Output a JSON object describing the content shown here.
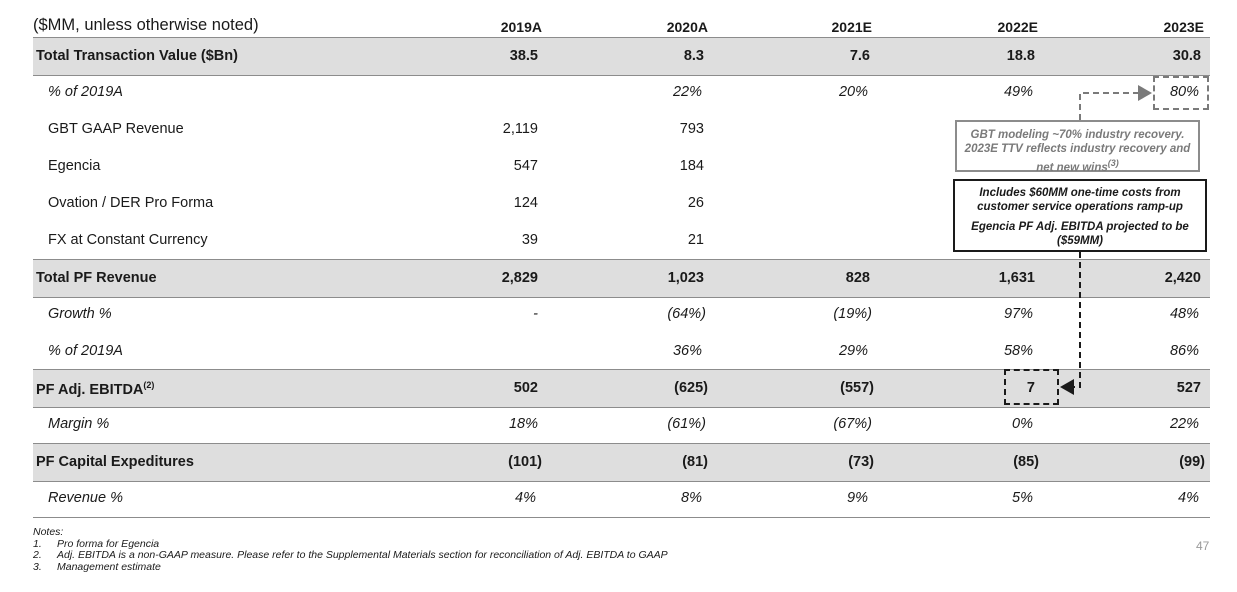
{
  "header": {
    "unit_note": "($MM, unless otherwise noted)",
    "years": [
      "2019A",
      "2020A",
      "2021E",
      "2022E",
      "2023E"
    ]
  },
  "rows": [
    {
      "label": "Total Transaction Value ($Bn)",
      "values": [
        "38.5",
        "8.3",
        "7.6",
        "18.8",
        "30.8"
      ]
    },
    {
      "label": "% of 2019A",
      "values": [
        "",
        "22%",
        "20%",
        "49%",
        "80%"
      ]
    },
    {
      "label": "GBT GAAP Revenue",
      "values": [
        "2,119",
        "793",
        "",
        "",
        ""
      ]
    },
    {
      "label": "Egencia",
      "values": [
        "547",
        "184",
        "",
        "",
        ""
      ]
    },
    {
      "label": "Ovation / DER Pro Forma",
      "values": [
        "124",
        "26",
        "",
        "",
        ""
      ]
    },
    {
      "label": "FX at Constant Currency",
      "values": [
        "39",
        "21",
        "",
        "",
        ""
      ]
    },
    {
      "label": "Total PF Revenue",
      "values": [
        "2,829",
        "1,023",
        "828",
        "1,631",
        "2,420"
      ]
    },
    {
      "label": "Growth %",
      "values": [
        "-",
        "(64%)",
        "(19%)",
        "97%",
        "48%"
      ]
    },
    {
      "label": "% of 2019A",
      "values": [
        "",
        "36%",
        "29%",
        "58%",
        "86%"
      ]
    },
    {
      "label": "PF Adj. EBITDA",
      "label_sup": "(2)",
      "values": [
        "502",
        "(625)",
        "(557)",
        "7",
        "527"
      ]
    },
    {
      "label": "Margin %",
      "values": [
        "18%",
        "(61%)",
        "(67%)",
        "0%",
        "22%"
      ]
    },
    {
      "label": "PF Capital Expeditures",
      "values": [
        "(101)",
        "(81)",
        "(73)",
        "(85)",
        "(99)"
      ]
    },
    {
      "label": "Revenue %",
      "values": [
        "4%",
        "8%",
        "9%",
        "5%",
        "4%"
      ]
    }
  ],
  "callouts": {
    "ttv_box": {
      "line1": "GBT modeling ~70% industry recovery.",
      "line2": "2023E TTV reflects industry recovery and",
      "line3": "net new wins",
      "sup": "(3)"
    },
    "ebitda_box": {
      "line1": "Includes $60MM one-time costs from",
      "line2": "customer service operations ramp-up",
      "line3": "Egencia PF Adj. EBITDA projected to be",
      "line4": "($59MM)"
    }
  },
  "notes": {
    "title": "Notes:",
    "items": [
      {
        "num": "1.",
        "text": "Pro forma for Egencia"
      },
      {
        "num": "2.",
        "text": "Adj. EBITDA is a non-GAAP measure. Please refer to the Supplemental Materials section for reconciliation of Adj. EBITDA to GAAP"
      },
      {
        "num": "3.",
        "text": "Management estimate"
      }
    ]
  },
  "page_number": "47",
  "colors": {
    "shade": "#dedede",
    "rule": "#8c8c8c",
    "callout_gray": "#7a7a7a",
    "callout_dark": "#1a1a1a"
  }
}
